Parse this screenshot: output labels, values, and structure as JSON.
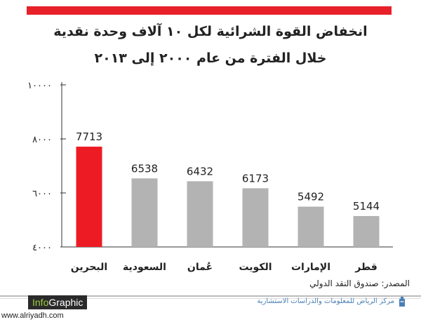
{
  "header": {
    "title_line1": "انخفاض القوة الشرائية لكل ١٠ آلاف وحدة نقدية",
    "title_line2": "خلال الفترة من عام ٢٠٠٠ إلى ٢٠١٣",
    "accent_color": "#e8202a"
  },
  "chart_data": {
    "type": "bar",
    "categories": [
      "البحرين",
      "السعودية",
      "عُمان",
      "الكويت",
      "الإمارات",
      "قطر"
    ],
    "values": [
      7713,
      6538,
      6432,
      6173,
      5492,
      5144
    ],
    "value_labels": [
      "7713",
      "6538",
      "6432",
      "6173",
      "5492",
      "5144"
    ],
    "y_ticks": [
      4000,
      6000,
      8000,
      10000
    ],
    "y_tick_labels": [
      "٤٠٠٠",
      "٦٠٠٠",
      "٨٠٠٠",
      "١٠٠٠٠"
    ],
    "ylim": [
      4000,
      10000
    ],
    "bar_colors": [
      "#ed1c24",
      "#b3b3b3",
      "#b3b3b3",
      "#b3b3b3",
      "#b3b3b3",
      "#b3b3b3"
    ],
    "title": "انخفاض القوة الشرائية لكل ١٠ آلاف وحدة نقدية خلال الفترة من عام ٢٠٠٠ إلى ٢٠١٣",
    "xlabel": "",
    "ylabel": "",
    "grid": false
  },
  "footer": {
    "source": "المصدر: صندوق النقد الدولي",
    "brand_part1": "Info",
    "brand_part2": "Graphic",
    "center_name": "مركز الرياض للمعلومات والدراسات الاستشارية",
    "url": "www.alriyadh.com",
    "center_icon": "building-icon"
  }
}
